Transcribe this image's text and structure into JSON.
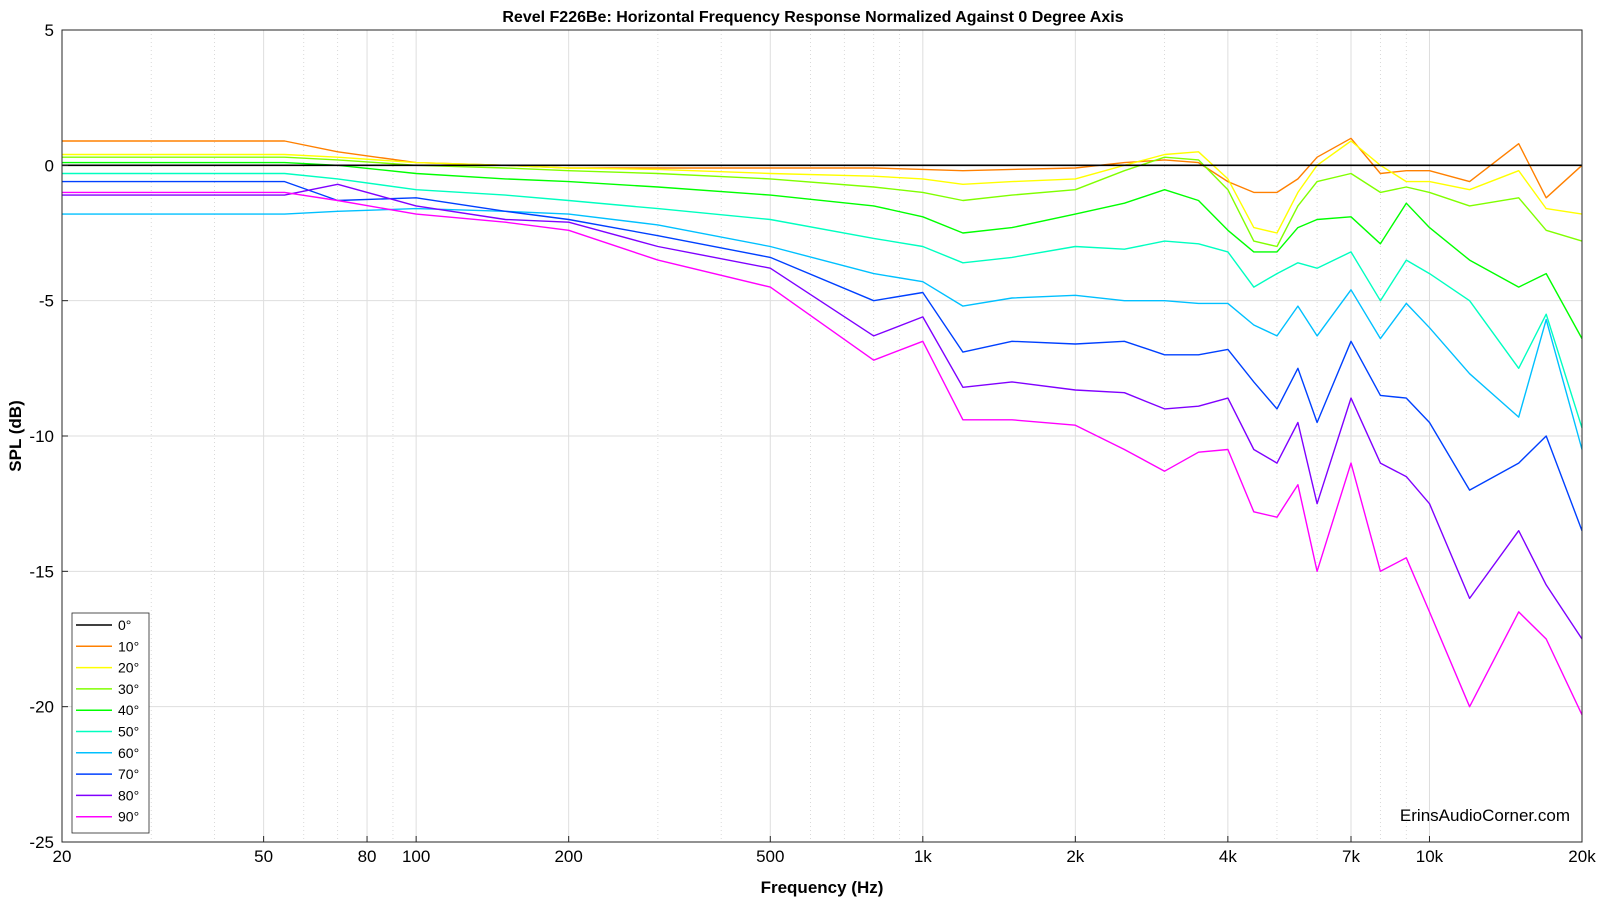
{
  "chart_data": {
    "type": "line",
    "title": "Revel F226Be: Horizontal Frequency Response Normalized Against 0 Degree Axis",
    "xlabel": "Frequency (Hz)",
    "ylabel": "SPL (dB)",
    "x_scale": "log",
    "xlim": [
      20,
      20000
    ],
    "ylim": [
      -25,
      5
    ],
    "x_ticks": [
      20,
      50,
      80,
      100,
      200,
      500,
      1000,
      2000,
      4000,
      7000,
      10000,
      20000
    ],
    "x_tick_labels": [
      "20",
      "50",
      "80",
      "100",
      "200",
      "500",
      "1k",
      "2k",
      "4k",
      "7k",
      "10k",
      "20k"
    ],
    "y_ticks": [
      5,
      0,
      -5,
      -10,
      -15,
      -20,
      -25
    ],
    "y_tick_labels": [
      "5",
      "0",
      "-5",
      "-10",
      "-15",
      "-20",
      "-25"
    ],
    "grid": true,
    "legend_position": "bottom-left",
    "watermark": "ErinsAudioCorner.com",
    "x": [
      20,
      55,
      70,
      100,
      150,
      200,
      300,
      500,
      800,
      1000,
      1200,
      1500,
      2000,
      2500,
      3000,
      3500,
      4000,
      4500,
      5000,
      5500,
      6000,
      7000,
      8000,
      9000,
      10000,
      12000,
      15000,
      17000,
      20000
    ],
    "series": [
      {
        "name": "0°",
        "color": "#000000",
        "values": [
          0,
          0,
          0,
          0,
          0,
          0,
          0,
          0,
          0,
          0,
          0,
          0,
          0,
          0,
          0,
          0,
          0,
          0,
          0,
          0,
          0,
          0,
          0,
          0,
          0,
          0,
          0,
          0,
          0
        ]
      },
      {
        "name": "10°",
        "color": "#ff8000",
        "values": [
          0.9,
          0.9,
          0.5,
          0.1,
          0.0,
          -0.1,
          -0.1,
          -0.1,
          -0.1,
          -0.15,
          -0.2,
          -0.15,
          -0.1,
          0.1,
          0.2,
          0.1,
          -0.6,
          -1.0,
          -1.0,
          -0.5,
          0.3,
          1.0,
          -0.3,
          -0.2,
          -0.2,
          -0.6,
          0.8,
          -1.2,
          0.0
        ]
      },
      {
        "name": "20°",
        "color": "#ffff00",
        "values": [
          0.4,
          0.4,
          0.3,
          0.1,
          0.0,
          -0.1,
          -0.15,
          -0.3,
          -0.4,
          -0.5,
          -0.7,
          -0.6,
          -0.5,
          0.0,
          0.4,
          0.5,
          -0.5,
          -2.3,
          -2.5,
          -1.0,
          0.0,
          0.9,
          0.0,
          -0.6,
          -0.6,
          -0.9,
          -0.2,
          -1.6,
          -1.8
        ]
      },
      {
        "name": "30°",
        "color": "#80ff00",
        "values": [
          0.3,
          0.3,
          0.2,
          0.0,
          -0.1,
          -0.2,
          -0.3,
          -0.5,
          -0.8,
          -1.0,
          -1.3,
          -1.1,
          -0.9,
          -0.2,
          0.3,
          0.2,
          -0.9,
          -2.8,
          -3.0,
          -1.5,
          -0.6,
          -0.3,
          -1.0,
          -0.8,
          -1.0,
          -1.5,
          -1.2,
          -2.4,
          -2.8
        ]
      },
      {
        "name": "40°",
        "color": "#00ff00",
        "values": [
          0.1,
          0.1,
          0.0,
          -0.3,
          -0.5,
          -0.6,
          -0.8,
          -1.1,
          -1.5,
          -1.9,
          -2.5,
          -2.3,
          -1.8,
          -1.4,
          -0.9,
          -1.3,
          -2.4,
          -3.2,
          -3.2,
          -2.3,
          -2.0,
          -1.9,
          -2.9,
          -1.4,
          -2.3,
          -3.5,
          -4.5,
          -4.0,
          -6.4
        ]
      },
      {
        "name": "50°",
        "color": "#00ffc0",
        "values": [
          -0.3,
          -0.3,
          -0.5,
          -0.9,
          -1.1,
          -1.3,
          -1.6,
          -2.0,
          -2.7,
          -3.0,
          -3.6,
          -3.4,
          -3.0,
          -3.1,
          -2.8,
          -2.9,
          -3.2,
          -4.5,
          -4.0,
          -3.6,
          -3.8,
          -3.2,
          -5.0,
          -3.5,
          -4.0,
          -5.0,
          -7.5,
          -5.5,
          -9.7
        ]
      },
      {
        "name": "60°",
        "color": "#00c0ff",
        "values": [
          -1.8,
          -1.8,
          -1.7,
          -1.6,
          -1.7,
          -1.8,
          -2.2,
          -3.0,
          -4.0,
          -4.3,
          -5.2,
          -4.9,
          -4.8,
          -5.0,
          -5.0,
          -5.1,
          -5.1,
          -5.9,
          -6.3,
          -5.2,
          -6.3,
          -4.6,
          -6.4,
          -5.1,
          -6.0,
          -7.7,
          -9.3,
          -5.7,
          -10.5
        ]
      },
      {
        "name": "70°",
        "color": "#0040ff",
        "values": [
          -0.6,
          -0.6,
          -1.3,
          -1.2,
          -1.7,
          -2.0,
          -2.6,
          -3.4,
          -5.0,
          -4.7,
          -6.9,
          -6.5,
          -6.6,
          -6.5,
          -7.0,
          -7.0,
          -6.8,
          -8.0,
          -9.0,
          -7.5,
          -9.5,
          -6.5,
          -8.5,
          -8.6,
          -9.5,
          -12.0,
          -11.0,
          -10.0,
          -13.5
        ]
      },
      {
        "name": "80°",
        "color": "#8000ff",
        "values": [
          -1.1,
          -1.1,
          -0.7,
          -1.5,
          -2.0,
          -2.1,
          -3.0,
          -3.8,
          -6.3,
          -5.6,
          -8.2,
          -8.0,
          -8.3,
          -8.4,
          -9.0,
          -8.9,
          -8.6,
          -10.5,
          -11.0,
          -9.5,
          -12.5,
          -8.6,
          -11.0,
          -11.5,
          -12.5,
          -16.0,
          -13.5,
          -15.5,
          -17.5
        ]
      },
      {
        "name": "90°",
        "color": "#ff00ff",
        "values": [
          -1.0,
          -1.0,
          -1.3,
          -1.8,
          -2.1,
          -2.4,
          -3.5,
          -4.5,
          -7.2,
          -6.5,
          -9.4,
          -9.4,
          -9.6,
          -10.5,
          -11.3,
          -10.6,
          -10.5,
          -12.8,
          -13.0,
          -11.8,
          -15.0,
          -11.0,
          -15.0,
          -14.5,
          -16.5,
          -20.0,
          -16.5,
          -17.5,
          -20.3
        ]
      }
    ]
  }
}
